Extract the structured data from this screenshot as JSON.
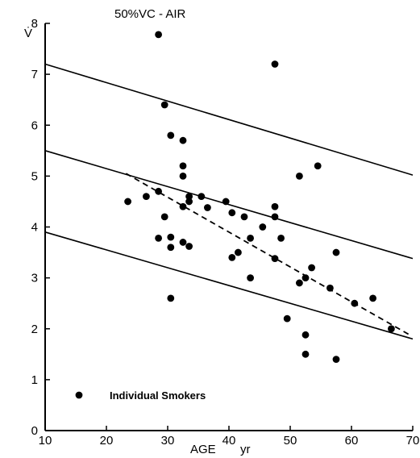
{
  "chart_data": {
    "type": "scatter",
    "title": "50%VC - AIR",
    "ylabel": "V̇",
    "xlabel": "AGE",
    "xlabel_unit": "yr",
    "xlim": [
      10,
      70
    ],
    "ylim": [
      0,
      8
    ],
    "x_ticks": [
      "10",
      "20",
      "30",
      "40",
      "50",
      "60",
      "70"
    ],
    "y_ticks": [
      "0",
      "1",
      "2",
      "3",
      "4",
      "5",
      "6",
      "7",
      "8"
    ],
    "grid": false,
    "legend": {
      "label": "Individual Smokers",
      "placement": "bottom-left"
    },
    "reference_lines": [
      {
        "x": [
          10,
          70
        ],
        "y": [
          7.2,
          5.02
        ]
      },
      {
        "x": [
          10,
          70
        ],
        "y": [
          5.5,
          3.38
        ]
      },
      {
        "x": [
          10,
          70
        ],
        "y": [
          3.9,
          1.8
        ]
      }
    ],
    "trend_line": {
      "style": "dashed",
      "x": [
        23.2,
        69.5
      ],
      "y": [
        5.05,
        1.88
      ]
    },
    "points": [
      [
        23.5,
        4.5
      ],
      [
        26.5,
        4.6
      ],
      [
        28.5,
        7.78
      ],
      [
        28.5,
        4.7
      ],
      [
        28.5,
        3.78
      ],
      [
        29.5,
        6.4
      ],
      [
        29.5,
        4.2
      ],
      [
        30.5,
        5.8
      ],
      [
        30.5,
        3.8
      ],
      [
        30.5,
        3.6
      ],
      [
        30.5,
        2.6
      ],
      [
        32.5,
        5.7
      ],
      [
        32.5,
        5.2
      ],
      [
        32.5,
        5.0
      ],
      [
        32.5,
        4.4
      ],
      [
        32.5,
        3.7
      ],
      [
        33.5,
        4.5
      ],
      [
        33.5,
        4.6
      ],
      [
        33.5,
        3.62
      ],
      [
        35.5,
        4.6
      ],
      [
        36.5,
        4.38
      ],
      [
        39.5,
        4.5
      ],
      [
        40.5,
        4.28
      ],
      [
        40.5,
        3.4
      ],
      [
        41.5,
        3.5
      ],
      [
        42.5,
        4.2
      ],
      [
        43.5,
        3.78
      ],
      [
        43.5,
        3.0
      ],
      [
        45.5,
        4.0
      ],
      [
        47.5,
        7.2
      ],
      [
        47.5,
        4.4
      ],
      [
        47.5,
        4.2
      ],
      [
        47.5,
        3.38
      ],
      [
        48.5,
        3.78
      ],
      [
        49.5,
        2.2
      ],
      [
        51.5,
        5.0
      ],
      [
        51.5,
        2.9
      ],
      [
        52.5,
        3.0
      ],
      [
        52.5,
        1.88
      ],
      [
        52.5,
        1.5
      ],
      [
        53.5,
        3.2
      ],
      [
        54.5,
        5.2
      ],
      [
        56.5,
        2.8
      ],
      [
        57.5,
        3.5
      ],
      [
        57.5,
        1.4
      ],
      [
        60.5,
        2.5
      ],
      [
        63.5,
        2.6
      ],
      [
        66.5,
        2.0
      ]
    ]
  }
}
